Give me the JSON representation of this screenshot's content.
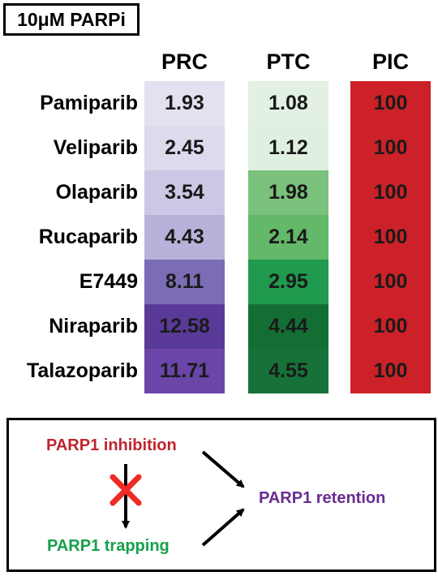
{
  "title": "10μM PARPi",
  "chart_data": {
    "type": "heatmap",
    "columns": [
      "PRC",
      "PTC",
      "PIC"
    ],
    "rows": [
      "Pamiparib",
      "Veliparib",
      "Olaparib",
      "Rucaparib",
      "E7449",
      "Niraparib",
      "Talazoparib"
    ],
    "values": {
      "PRC": [
        "1.93",
        "2.45",
        "3.54",
        "4.43",
        "8.11",
        "12.58",
        "11.71"
      ],
      "PTC": [
        "1.08",
        "1.12",
        "1.98",
        "2.14",
        "2.95",
        "4.44",
        "4.55"
      ],
      "PIC": [
        "100",
        "100",
        "100",
        "100",
        "100",
        "100",
        "100"
      ]
    },
    "colors": {
      "PRC": [
        "#e3e0f0",
        "#dddaee",
        "#ccc7e4",
        "#b8b1d9",
        "#7b6cb5",
        "#5a3a99",
        "#6b45a8"
      ],
      "PTC": [
        "#e2f1e3",
        "#dff0e0",
        "#7ac17c",
        "#63b86a",
        "#1f9a4e",
        "#136e34",
        "#167238"
      ],
      "PIC": [
        "#cc2128",
        "#cc2128",
        "#cc2128",
        "#cc2128",
        "#cc2128",
        "#cc2128",
        "#cc2128"
      ]
    }
  },
  "diagram": {
    "inhibition": {
      "label": "PARP1 inhibition",
      "color": "#c0242c"
    },
    "trapping": {
      "label": "PARP1 trapping",
      "color": "#16a04a"
    },
    "retention": {
      "label": "PARP1 retention",
      "color": "#6a2c91"
    },
    "blocked_marker": {
      "icon": "red-x-icon",
      "color": "#ee2a24"
    }
  }
}
